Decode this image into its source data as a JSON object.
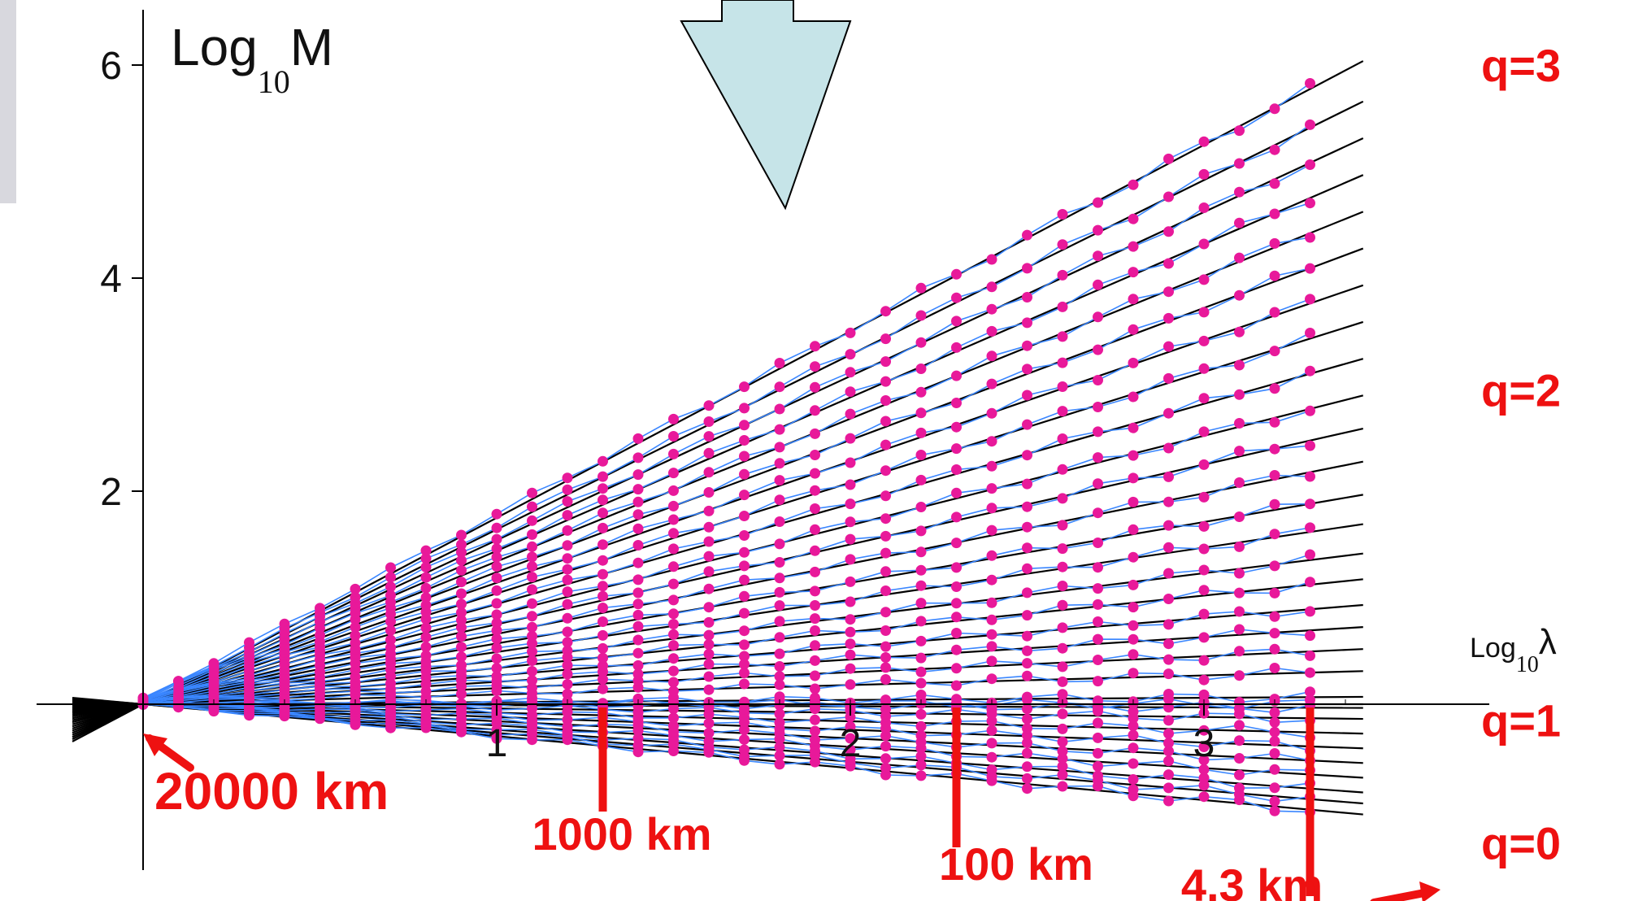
{
  "chart_data": {
    "type": "line",
    "title": "",
    "xlabel": {
      "main": "Log",
      "sub": "10",
      "symbol": "λ"
    },
    "ylabel": {
      "main": "Log",
      "sub": "10",
      "symbol": "M"
    },
    "xlim": [
      0,
      3.45
    ],
    "ylim": [
      -1.5,
      6.5
    ],
    "x_ticks": [
      "1",
      "2",
      "3"
    ],
    "y_ticks": [
      "2",
      "4",
      "6"
    ],
    "grid": false,
    "legend": "none",
    "x_points": [
      0,
      0.1,
      0.2,
      0.3,
      0.4,
      0.5,
      0.6,
      0.7,
      0.8,
      0.9,
      1.0,
      1.1,
      1.2,
      1.3,
      1.4,
      1.5,
      1.6,
      1.7,
      1.8,
      1.9,
      2.0,
      2.1,
      2.2,
      2.3,
      2.4,
      2.5,
      2.6,
      2.7,
      2.8,
      2.9,
      3.0,
      3.1,
      3.2,
      3.3
    ],
    "fit_lines_x": [
      -0.2,
      3.45
    ],
    "moments": {
      "q_values": [
        0.0,
        0.1,
        0.2,
        0.3,
        0.4,
        0.5,
        0.6,
        0.7,
        0.8,
        0.9,
        1.0,
        1.1,
        1.2,
        1.3,
        1.4,
        1.5,
        1.6,
        1.7,
        1.8,
        1.9,
        2.0,
        2.1,
        2.2,
        2.3,
        2.4,
        2.5,
        2.6,
        2.7,
        2.8,
        2.9,
        3.0
      ],
      "slopes": [
        -0.3,
        -0.27,
        -0.24,
        -0.2,
        -0.16,
        -0.12,
        -0.08,
        -0.04,
        -0.01,
        0.02,
        0.0,
        0.09,
        0.15,
        0.21,
        0.27,
        0.34,
        0.41,
        0.49,
        0.57,
        0.66,
        0.75,
        0.84,
        0.94,
        1.04,
        1.14,
        1.24,
        1.34,
        1.44,
        1.54,
        1.64,
        1.75
      ]
    },
    "colors": {
      "fit_line": "#000000",
      "data_line": "#3a86ff",
      "data_point": "#e8199a",
      "annotation": "#ee1111",
      "arrow_fill": "#c6e4e8"
    },
    "q_labels": [
      {
        "text": "q=3",
        "y": 6.0
      },
      {
        "text": "q=2",
        "y": 2.95
      },
      {
        "text": "q=1",
        "y": -0.15
      },
      {
        "text": "q=0",
        "y": -1.3
      }
    ],
    "scale_markers": [
      {
        "label": "20000 km",
        "x": 0.0
      },
      {
        "label": "1000 km",
        "x": 1.3
      },
      {
        "label": "100 km",
        "x": 2.3
      },
      {
        "label": "4.3 km",
        "x": 3.3
      }
    ]
  }
}
